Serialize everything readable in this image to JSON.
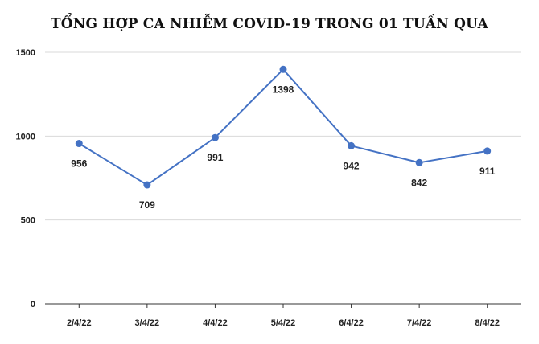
{
  "chart_data": {
    "type": "line",
    "title": "TỔNG HỢP CA NHIỄM COVID-19 TRONG 01 TUẦN QUA",
    "xlabel": "",
    "ylabel": "",
    "categories": [
      "2/4/22",
      "3/4/22",
      "4/4/22",
      "5/4/22",
      "6/4/22",
      "7/4/22",
      "8/4/22"
    ],
    "series": [
      {
        "values": [
          956,
          709,
          991,
          1398,
          942,
          842,
          911
        ]
      }
    ],
    "ylim": [
      0,
      1500
    ],
    "yticks": [
      0,
      500,
      1000,
      1500
    ],
    "grid": true,
    "data_labels": [
      "956",
      "709",
      "991",
      "1398",
      "942",
      "842",
      "911"
    ],
    "colors": {
      "line": "#4472c4",
      "grid": "#d9d9d9",
      "axis": "#333333"
    }
  }
}
